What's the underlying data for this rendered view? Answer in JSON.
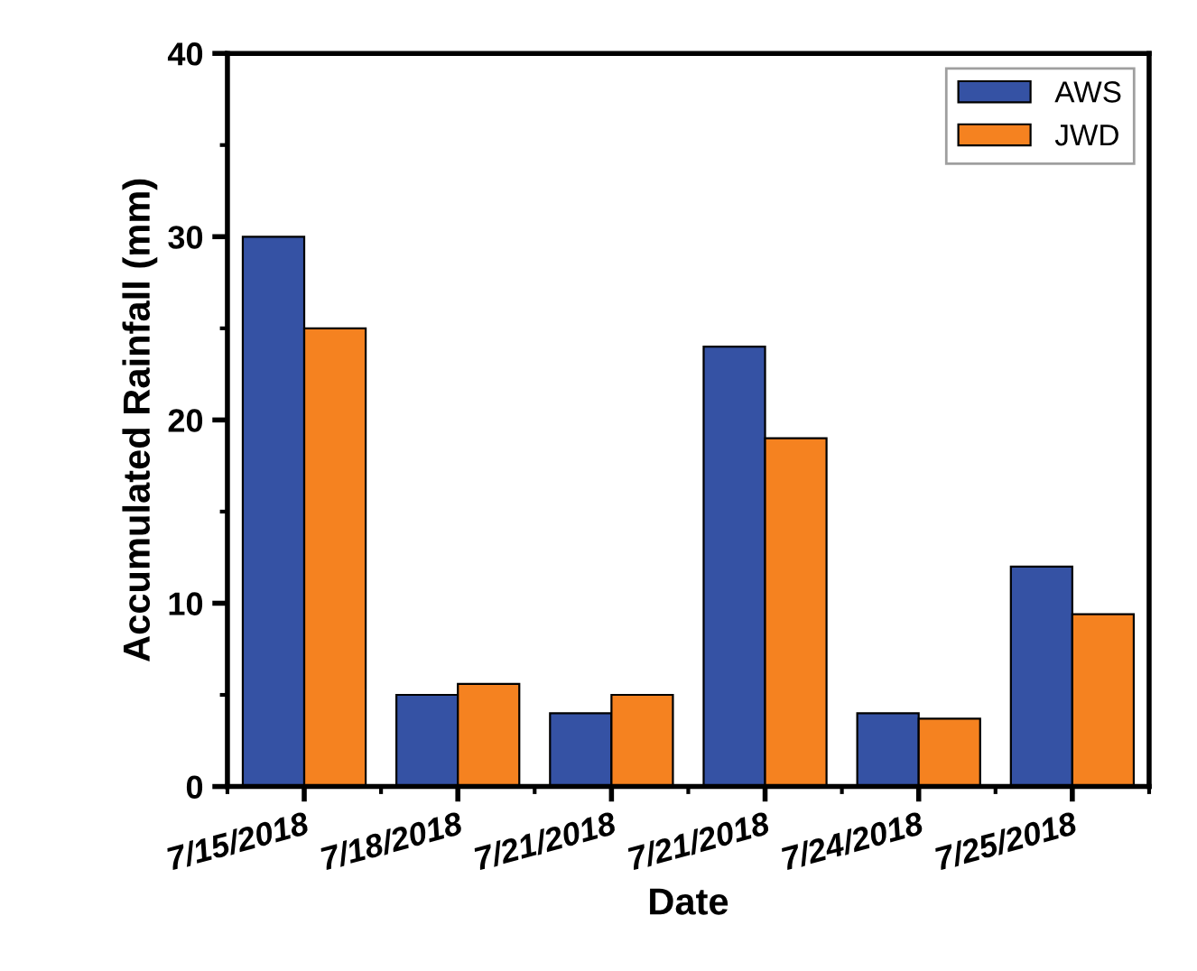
{
  "chart_data": {
    "type": "bar",
    "xlabel": "Date",
    "ylabel": "Accumulated Rainfall (mm)",
    "categories": [
      "7/15/2018",
      "7/18/2018",
      "7/21/2018",
      "7/21/2018",
      "7/24/2018",
      "7/25/2018"
    ],
    "series": [
      {
        "name": "AWS",
        "color": "#3552a4",
        "values": [
          30,
          5,
          4,
          24,
          4,
          12
        ]
      },
      {
        "name": "JWD",
        "color": "#f58220",
        "values": [
          25,
          5.6,
          5,
          19,
          3.7,
          9.4
        ]
      }
    ],
    "ylim": [
      0,
      40
    ],
    "yticks": [
      0,
      10,
      20,
      30,
      40
    ],
    "grid": false,
    "legend": "top right"
  }
}
